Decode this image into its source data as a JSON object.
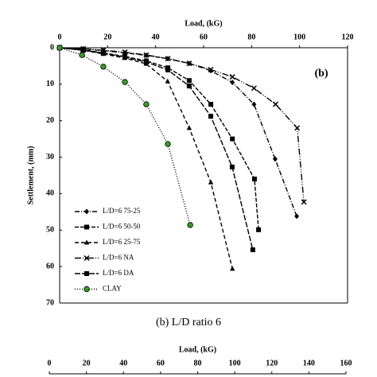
{
  "chart_data": [
    {
      "type": "line",
      "xlabel": "Load, (kG)",
      "ylabel": "Settlement, (mm)",
      "annotation": "(b)",
      "caption": "(b) L/D ratio 6",
      "xlim": [
        0,
        120
      ],
      "xticks": [
        0,
        20,
        40,
        60,
        80,
        100,
        120
      ],
      "ylim": [
        0,
        70
      ],
      "yticks": [
        0,
        10,
        20,
        30,
        40,
        50,
        60,
        70
      ],
      "y_inverted": true,
      "x_axis_top": true,
      "legend": "lower left",
      "series": [
        {
          "name": "L/D=6 75-25",
          "color": "#000000",
          "marker": "diamond",
          "dash": "6,2,1,2",
          "x": [
            0,
            9.8,
            18.2,
            27.2,
            36.1,
            45.1,
            54,
            63,
            72,
            81,
            89.8,
            98.8
          ],
          "values": [
            0,
            0.3,
            0.8,
            1.4,
            2.1,
            3,
            4.3,
            6.3,
            9.5,
            15.5,
            30.5,
            46.2
          ]
        },
        {
          "name": "L/D=6 50-50",
          "color": "#000000",
          "marker": "square",
          "dash": "5,2",
          "x": [
            0,
            9.8,
            18.2,
            27.2,
            36.1,
            45.1,
            54,
            63,
            72,
            81.2,
            82.9
          ],
          "values": [
            0,
            0.6,
            1.4,
            2.4,
            3.6,
            5.5,
            9,
            15.5,
            25,
            36,
            49.9
          ]
        },
        {
          "name": "L/D=6 25-75",
          "color": "#000000",
          "marker": "triangle",
          "dash": "5,3",
          "x": [
            0,
            9.6,
            18.2,
            27,
            36,
            45,
            54,
            63,
            72
          ],
          "values": [
            0,
            0.7,
            1.7,
            2.8,
            4.4,
            9.2,
            22,
            36.9,
            60.6
          ]
        },
        {
          "name": "L/D=6 NA",
          "color": "#000000",
          "marker": "cross",
          "dash": "8,2,1,2,1,2",
          "x": [
            0,
            9.8,
            18.2,
            27.2,
            36.1,
            45.1,
            54,
            63,
            72,
            81,
            90,
            99,
            101.8
          ],
          "values": [
            0,
            0.3,
            0.7,
            1.2,
            2,
            3,
            4.3,
            6,
            8,
            11.1,
            15.5,
            22,
            42.3
          ]
        },
        {
          "name": "L/D=6 DA",
          "color": "#000000",
          "marker": "square",
          "dash": "7,2",
          "x": [
            0,
            9.9,
            18.2,
            27.2,
            36.1,
            45.1,
            54,
            63,
            71.9,
            80.5
          ],
          "values": [
            0,
            0.7,
            1.5,
            2.6,
            3.9,
            6.1,
            10.5,
            18.8,
            32.7,
            55.4
          ]
        },
        {
          "name": "CLAY",
          "color": "#3a9a2a",
          "marker": "circle",
          "dash": "1,2",
          "x": [
            0,
            9.3,
            18.2,
            27.2,
            36.1,
            45.1,
            54.4
          ],
          "values": [
            0,
            2,
            5.2,
            9.4,
            15.5,
            26.4,
            48.6
          ]
        }
      ]
    },
    {
      "type": "line",
      "xlabel": "Load, (kG)",
      "xlim": [
        0,
        160
      ],
      "xticks": [
        0,
        20,
        40,
        60,
        80,
        100,
        120,
        140,
        160
      ],
      "x_axis_top": true,
      "series": []
    }
  ]
}
